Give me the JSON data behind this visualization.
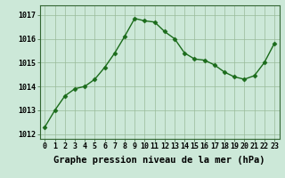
{
  "x": [
    0,
    1,
    2,
    3,
    4,
    5,
    6,
    7,
    8,
    9,
    10,
    11,
    12,
    13,
    14,
    15,
    16,
    17,
    18,
    19,
    20,
    21,
    22,
    23
  ],
  "y": [
    1012.3,
    1013.0,
    1013.6,
    1013.9,
    1014.0,
    1014.3,
    1014.8,
    1015.4,
    1016.1,
    1016.85,
    1016.75,
    1016.7,
    1016.3,
    1016.0,
    1015.4,
    1015.15,
    1015.1,
    1014.9,
    1014.6,
    1014.4,
    1014.3,
    1014.45,
    1015.0,
    1015.8
  ],
  "line_color": "#1a6b1a",
  "marker": "D",
  "marker_size": 2.5,
  "bg_color": "#cce8d8",
  "grid_color": "#99bb99",
  "xlabel": "Graphe pression niveau de la mer (hPa)",
  "xlabel_fontsize": 7.5,
  "ylim": [
    1011.8,
    1017.4
  ],
  "yticks": [
    1012,
    1013,
    1014,
    1015,
    1016,
    1017
  ],
  "xtick_labels": [
    "0",
    "1",
    "2",
    "3",
    "4",
    "5",
    "6",
    "7",
    "8",
    "9",
    "10",
    "11",
    "12",
    "13",
    "14",
    "15",
    "16",
    "17",
    "18",
    "19",
    "20",
    "21",
    "22",
    "23"
  ],
  "tick_fontsize": 6,
  "line_width": 1.0
}
